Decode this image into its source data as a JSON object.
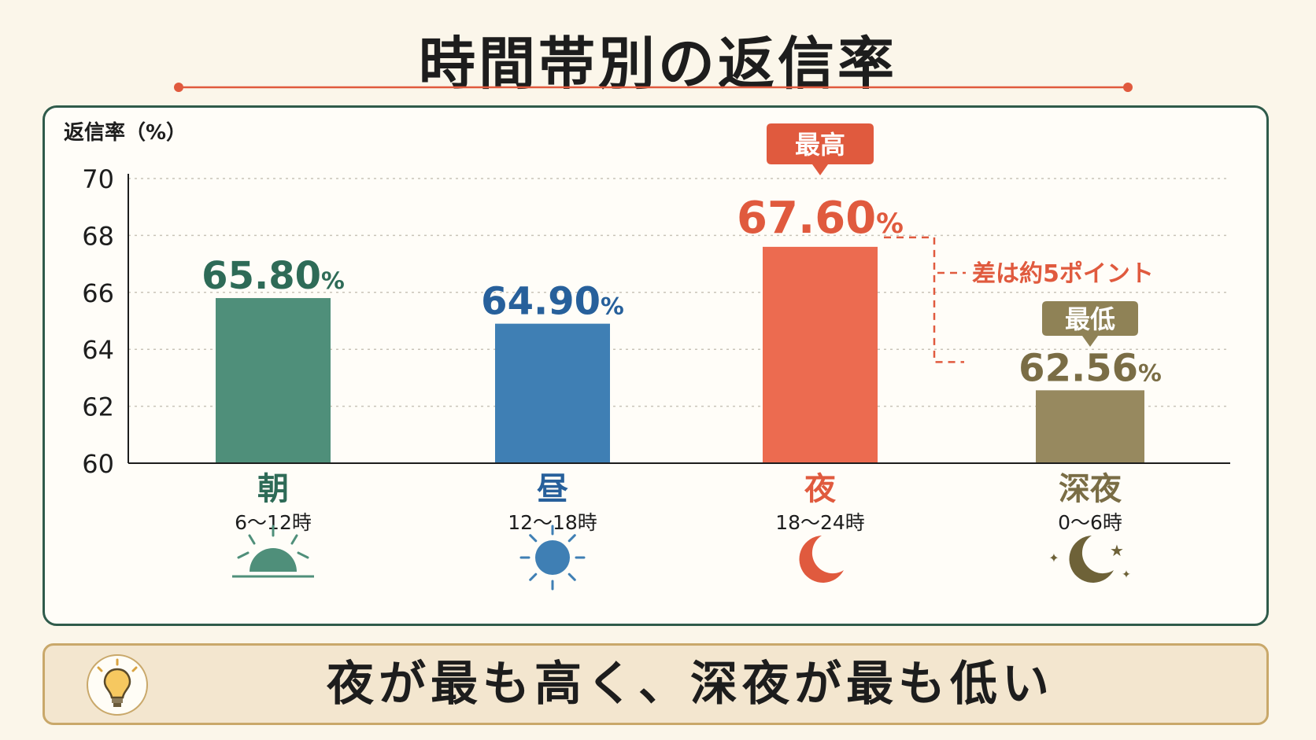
{
  "title": "時間帯別の返信率",
  "summary": "夜が最も高く、深夜が最も低い",
  "colors": {
    "morning": "#4f8f7a",
    "noon": "#3f7fb4",
    "night": "#ec6b50",
    "late_night": "#97895f",
    "accent_red": "#e05a3e",
    "morning_text": "#2e6b57",
    "noon_text": "#27609b",
    "late_text": "#7a6d45"
  },
  "chart_data": {
    "type": "bar",
    "ylabel": "返信率（%）",
    "ylim": [
      60,
      70
    ],
    "yticks": [
      "60",
      "62",
      "64",
      "66",
      "68",
      "70"
    ],
    "grid": true,
    "categories": [
      "朝",
      "昼",
      "夜",
      "深夜"
    ],
    "sublabels": [
      "6〜12時",
      "12〜18時",
      "18〜24時",
      "0〜6時"
    ],
    "values": [
      65.8,
      64.9,
      67.6,
      62.56
    ],
    "value_labels": [
      "65.80",
      "64.90",
      "67.60",
      "62.56"
    ],
    "value_unit": "%",
    "icons": [
      "sunrise-icon",
      "sun-icon",
      "moon-icon",
      "moon-stars-icon"
    ],
    "badges": [
      {
        "category": "夜",
        "text": "最高"
      },
      {
        "category": "深夜",
        "text": "最低"
      }
    ],
    "annotation": "差は約5ポイント"
  }
}
